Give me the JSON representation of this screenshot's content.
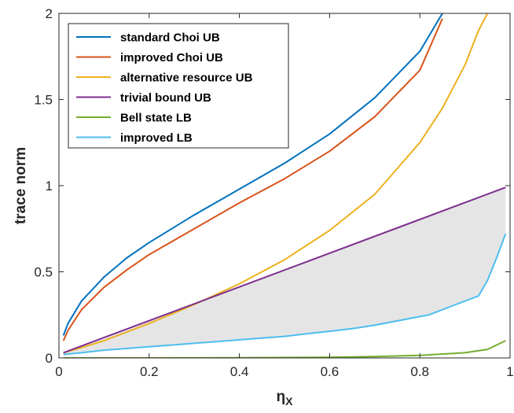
{
  "chart_data": {
    "type": "line",
    "xlabel": "η",
    "xlabel_subscript": "X",
    "ylabel": "trace norm",
    "xlim": [
      0,
      1
    ],
    "ylim": [
      0,
      2
    ],
    "xticks": [
      0,
      0.2,
      0.4,
      0.6,
      0.8,
      1
    ],
    "xtick_labels": [
      "0",
      "0.2",
      "0.4",
      "0.6",
      "0.8",
      "1"
    ],
    "yticks": [
      0,
      0.5,
      1,
      1.5,
      2
    ],
    "ytick_labels": [
      "0",
      "0.5",
      "1",
      "1.5",
      "2"
    ],
    "grid": false,
    "legend_position": "top-left",
    "shaded_region": {
      "between": [
        "trivial bound UB",
        "improved LB"
      ],
      "color": "#e5e5e5"
    },
    "series": [
      {
        "name": "standard Choi UB",
        "color": "#0072BD",
        "x": [
          0.01,
          0.02,
          0.05,
          0.1,
          0.15,
          0.2,
          0.3,
          0.4,
          0.5,
          0.6,
          0.7,
          0.8,
          0.85
        ],
        "y": [
          0.13,
          0.2,
          0.33,
          0.47,
          0.58,
          0.67,
          0.83,
          0.98,
          1.13,
          1.3,
          1.51,
          1.78,
          2.0
        ]
      },
      {
        "name": "improved Choi UB",
        "color": "#D95319",
        "x": [
          0.01,
          0.02,
          0.05,
          0.1,
          0.15,
          0.2,
          0.3,
          0.4,
          0.5,
          0.6,
          0.7,
          0.8,
          0.85
        ],
        "y": [
          0.1,
          0.16,
          0.28,
          0.41,
          0.51,
          0.6,
          0.75,
          0.9,
          1.04,
          1.2,
          1.4,
          1.67,
          1.97
        ]
      },
      {
        "name": "alternative resource UB",
        "color": "#EDB120",
        "x": [
          0.01,
          0.05,
          0.1,
          0.2,
          0.3,
          0.4,
          0.5,
          0.6,
          0.7,
          0.8,
          0.85,
          0.9,
          0.93,
          0.95
        ],
        "y": [
          0.03,
          0.06,
          0.1,
          0.2,
          0.31,
          0.43,
          0.57,
          0.74,
          0.95,
          1.25,
          1.45,
          1.7,
          1.9,
          2.0
        ]
      },
      {
        "name": "trivial bound UB",
        "color": "#7E2F8E",
        "x": [
          0.01,
          0.99
        ],
        "y": [
          0.03,
          0.99
        ]
      },
      {
        "name": "Bell state LB",
        "color": "#77AC30",
        "x": [
          0.01,
          0.2,
          0.4,
          0.6,
          0.7,
          0.8,
          0.9,
          0.95,
          0.99
        ],
        "y": [
          0.0,
          0.0,
          0.001,
          0.004,
          0.008,
          0.015,
          0.03,
          0.05,
          0.1
        ]
      },
      {
        "name": "improved LB",
        "color": "#4DBEEE",
        "x": [
          0.01,
          0.05,
          0.1,
          0.15,
          0.2,
          0.25,
          0.3,
          0.35,
          0.4,
          0.45,
          0.5,
          0.55,
          0.6,
          0.65,
          0.7,
          0.75,
          0.8,
          0.82,
          0.86,
          0.9,
          0.93,
          0.95,
          0.97,
          0.99
        ],
        "y": [
          0.02,
          0.03,
          0.045,
          0.055,
          0.065,
          0.075,
          0.085,
          0.095,
          0.105,
          0.115,
          0.125,
          0.14,
          0.155,
          0.17,
          0.19,
          0.215,
          0.24,
          0.25,
          0.29,
          0.33,
          0.36,
          0.45,
          0.58,
          0.72
        ]
      }
    ]
  }
}
